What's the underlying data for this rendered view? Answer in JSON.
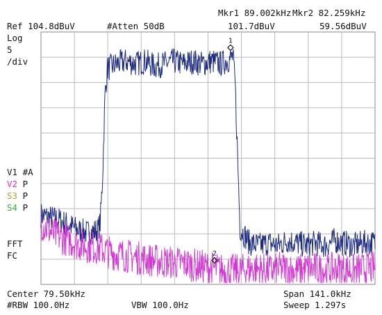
{
  "header": {
    "ref_level": "Ref 104.8dBuV",
    "attenuation": "#Atten 50dB",
    "mkr1_label": "Mkr1 89.002kHz",
    "mkr1_value": "101.7dBuV",
    "mkr2_label": "Mkr2 82.259kHz",
    "mkr2_value": "59.56dBuV"
  },
  "scale": {
    "mode": "Log",
    "value": "5",
    "unit": "/div"
  },
  "traces": [
    {
      "id": "V1",
      "mode": "#A",
      "color": "#1a1a1a"
    },
    {
      "id": "V2",
      "mode": "P",
      "color": "#cc33cc"
    },
    {
      "id": "S3",
      "mode": "P",
      "color": "#b89a3c"
    },
    {
      "id": "S4",
      "mode": "P",
      "color": "#33b033"
    }
  ],
  "side_labels": {
    "fft": "FFT",
    "fc": "FC"
  },
  "markers": [
    {
      "label": "1",
      "freq_khz": 89.002,
      "level_dbuv": 101.7
    },
    {
      "label": "2",
      "freq_khz": 82.259,
      "level_dbuv": 59.56
    }
  ],
  "footer": {
    "center": "Center 79.50kHz",
    "span": "Span 141.0kHz",
    "rbw": "#RBW 100.0Hz",
    "vbw": "VBW 100.0Hz",
    "sweep": "Sweep 1.297s"
  },
  "chart_data": {
    "type": "line",
    "x_range_khz": [
      9.0,
      150.0
    ],
    "y_range_dbuv": [
      54.8,
      104.8
    ],
    "divisions": {
      "x": 10,
      "y": 10
    },
    "grid": true,
    "series": [
      {
        "color": "#1c2a80",
        "x": [
          9,
          13,
          17,
          21,
          25,
          29,
          33,
          34,
          35,
          36,
          37,
          41,
          45,
          49,
          53,
          57,
          61,
          65,
          69,
          73,
          77,
          81,
          85,
          89,
          90,
          91,
          92,
          93,
          97,
          101,
          105,
          109,
          113,
          117,
          121,
          125,
          129,
          133,
          137,
          141,
          145,
          150
        ],
        "y": [
          68.5,
          68.0,
          67.5,
          66.5,
          65.5,
          65.0,
          65.5,
          67.0,
          76.0,
          92.0,
          97.5,
          98.5,
          99.0,
          98.5,
          99.0,
          98.0,
          98.5,
          99.0,
          98.5,
          99.0,
          98.5,
          99.0,
          98.5,
          99.5,
          100.0,
          94.0,
          80.0,
          66.0,
          63.0,
          62.5,
          63.0,
          62.5,
          63.5,
          63.0,
          62.5,
          63.0,
          62.5,
          63.5,
          63.0,
          62.5,
          63.0,
          63.0
        ]
      },
      {
        "color": "#d23ad2",
        "x": [
          9,
          15,
          21,
          27,
          33,
          39,
          45,
          51,
          57,
          63,
          69,
          75,
          81,
          87,
          93,
          99,
          105,
          111,
          117,
          123,
          129,
          135,
          141,
          147,
          150
        ],
        "y": [
          67.0,
          64.5,
          63.5,
          62.5,
          62.0,
          61.0,
          60.5,
          60.0,
          59.5,
          59.2,
          59.0,
          58.5,
          58.0,
          57.5,
          57.5,
          58.0,
          57.5,
          58.0,
          57.5,
          58.0,
          57.5,
          58.0,
          57.5,
          58.0,
          58.0
        ]
      }
    ]
  }
}
